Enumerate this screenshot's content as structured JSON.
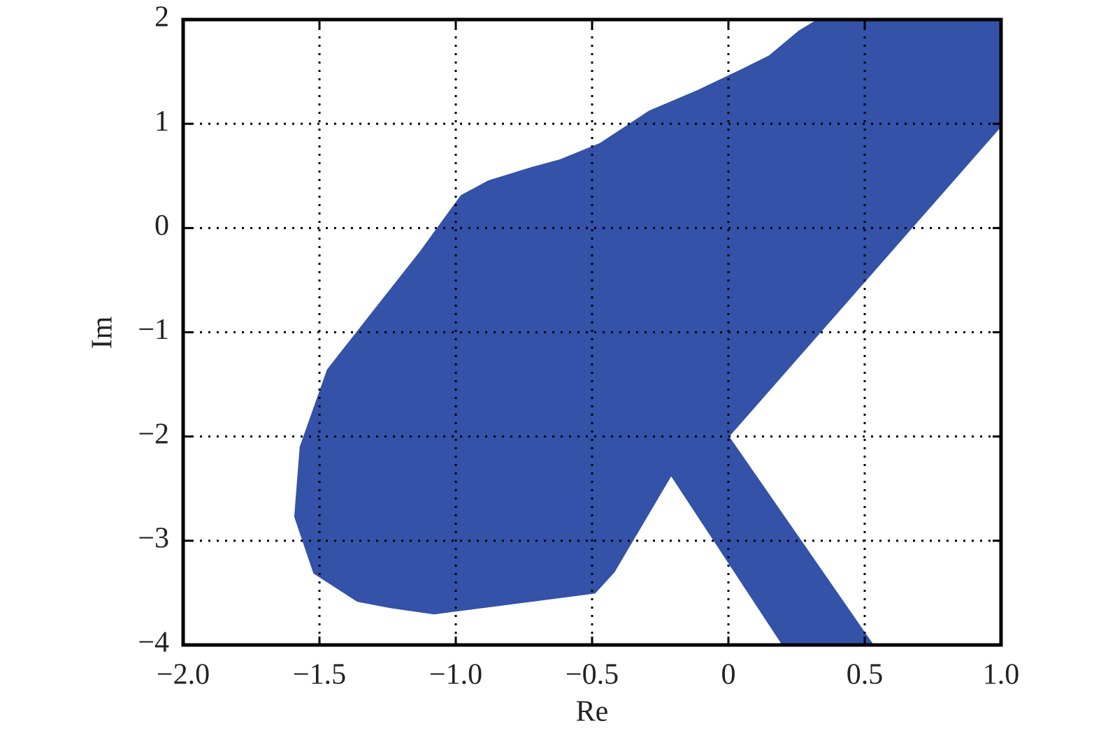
{
  "chart_data": {
    "type": "region",
    "x_label": "Re",
    "y_label": "Im",
    "xlim": [
      -2.0,
      1.0
    ],
    "xticks": [
      {
        "value": -2.0,
        "label": "−2.0"
      },
      {
        "value": -1.5,
        "label": "−1.5"
      },
      {
        "value": -1.0,
        "label": "−1.0"
      },
      {
        "value": -0.5,
        "label": "−0.5"
      },
      0,
      0.5,
      {
        "value": 1.0,
        "label": "1.0"
      }
    ],
    "ylim": [
      -4,
      2
    ],
    "yticks": [
      2,
      1,
      0,
      {
        "value": -1,
        "label": "−1"
      },
      {
        "value": -2,
        "label": "−2"
      },
      {
        "value": -3,
        "label": "−3"
      },
      {
        "value": -4,
        "label": "−4"
      }
    ],
    "grid": true,
    "series": [
      {
        "color": "#3352a8",
        "x": [
          0.33,
          1.0,
          1.0,
          0.0,
          0.53,
          0.2,
          -0.21,
          -0.42,
          -0.49,
          -1.08,
          -1.24,
          -1.36,
          -1.52,
          -1.59,
          -1.57,
          -1.47,
          -1.29,
          -1.13,
          -0.98,
          -0.88,
          -0.72,
          -0.62,
          -0.47,
          -0.29,
          -0.11,
          0.05,
          0.15,
          0.26
        ],
        "y": [
          2,
          2,
          0.98,
          -2.0,
          -4,
          -4,
          -2.37,
          -3.3,
          -3.5,
          -3.7,
          -3.64,
          -3.58,
          -3.31,
          -2.77,
          -2.1,
          -1.36,
          -0.76,
          -0.23,
          0.31,
          0.45,
          0.58,
          0.65,
          0.81,
          1.12,
          1.32,
          1.52,
          1.65,
          1.89
        ]
      }
    ]
  }
}
